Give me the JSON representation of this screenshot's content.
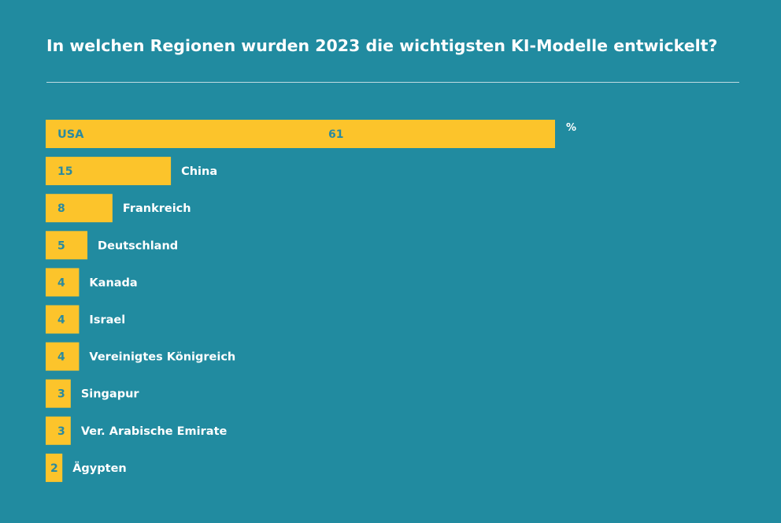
{
  "colors": {
    "background": "#218ba0",
    "bar": "#fcc42b",
    "bar_text": "#2a8aa0",
    "label_text": "#ffffff"
  },
  "chart_data": {
    "type": "bar",
    "orientation": "horizontal",
    "title": "In welchen Regionen wurden 2023 die wichtigsten KI-Modelle entwickelt?",
    "unit": "%",
    "categories": [
      "USA",
      "China",
      "Frankreich",
      "Deutschland",
      "Kanada",
      "Israel",
      "Vereinigtes Königreich",
      "Singapur",
      "Ver. Arabische Emirate",
      "Ägypten"
    ],
    "values": [
      61,
      15,
      8,
      5,
      4,
      4,
      4,
      3,
      3,
      2
    ],
    "xlim": [
      0,
      61
    ],
    "grid": false,
    "legend": "none"
  }
}
